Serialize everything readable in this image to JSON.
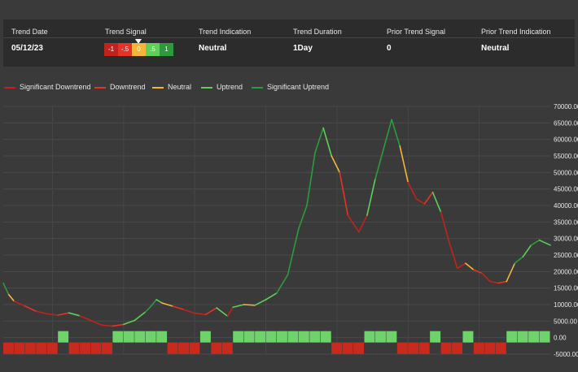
{
  "summary": {
    "headers": [
      "Trend Date",
      "Trend Signal",
      "Trend Indication",
      "Trend Duration",
      "Prior Trend Signal",
      "Prior Trend Indication"
    ],
    "trend_date": "05/12/23",
    "trend_indication": "Neutral",
    "trend_duration": "1Day",
    "prior_trend_signal": "0",
    "prior_trend_indication": "Neutral",
    "signal_scale": [
      {
        "label": "-1",
        "color": "#c0231b"
      },
      {
        "label": "-.5",
        "color": "#e53327"
      },
      {
        "label": "0",
        "color": "#f3b53b"
      },
      {
        "label": ".5",
        "color": "#5fcf5a"
      },
      {
        "label": "1",
        "color": "#2e9a3e"
      }
    ],
    "current_signal": "0"
  },
  "chart_data": {
    "type": "line",
    "legend_placement": "top-left",
    "series": [
      {
        "name": "Significant Downtrend",
        "color": "#c0231b"
      },
      {
        "name": "Downtrend",
        "color": "#e53327"
      },
      {
        "name": "Neutral",
        "color": "#f3b53b"
      },
      {
        "name": "Uptrend",
        "color": "#5fcf5a"
      },
      {
        "name": "Significant Uptrend",
        "color": "#2e9a3e"
      }
    ],
    "ylim": [
      -5000,
      70000
    ],
    "yticks": [
      "70000.00",
      "65000.00",
      "60000.00",
      "55000.00",
      "50000.00",
      "45000.00",
      "40000.00",
      "35000.00",
      "30000.00",
      "25000.00",
      "20000.00",
      "15000.00",
      "10000.00",
      "5000.00",
      "0.00",
      "-5000.00"
    ],
    "grid": true,
    "price": [
      {
        "x": 0,
        "y": 16500,
        "s": 1
      },
      {
        "x": 0.01,
        "y": 13000,
        "s": 0
      },
      {
        "x": 0.02,
        "y": 11000,
        "s": -1
      },
      {
        "x": 0.04,
        "y": 9500,
        "s": -0.5
      },
      {
        "x": 0.06,
        "y": 8000,
        "s": -1
      },
      {
        "x": 0.08,
        "y": 7200,
        "s": -1
      },
      {
        "x": 0.1,
        "y": 6800,
        "s": -0.5
      },
      {
        "x": 0.12,
        "y": 7500,
        "s": 0.5
      },
      {
        "x": 0.14,
        "y": 6600,
        "s": -1
      },
      {
        "x": 0.16,
        "y": 5200,
        "s": -1
      },
      {
        "x": 0.18,
        "y": 3800,
        "s": -1
      },
      {
        "x": 0.2,
        "y": 3500,
        "s": -0.5
      },
      {
        "x": 0.22,
        "y": 4000,
        "s": 0.5
      },
      {
        "x": 0.24,
        "y": 5200,
        "s": 0.5
      },
      {
        "x": 0.26,
        "y": 7800,
        "s": 1
      },
      {
        "x": 0.27,
        "y": 9500,
        "s": 1
      },
      {
        "x": 0.28,
        "y": 11500,
        "s": 0.5
      },
      {
        "x": 0.29,
        "y": 10500,
        "s": 0
      },
      {
        "x": 0.31,
        "y": 9500,
        "s": -0.5
      },
      {
        "x": 0.33,
        "y": 8500,
        "s": -1
      },
      {
        "x": 0.35,
        "y": 7400,
        "s": -1
      },
      {
        "x": 0.37,
        "y": 7000,
        "s": -0.5
      },
      {
        "x": 0.39,
        "y": 9000,
        "s": 0.5
      },
      {
        "x": 0.41,
        "y": 6500,
        "s": -1
      },
      {
        "x": 0.42,
        "y": 9200,
        "s": 0.5
      },
      {
        "x": 0.44,
        "y": 10000,
        "s": 0
      },
      {
        "x": 0.46,
        "y": 9800,
        "s": 0.5
      },
      {
        "x": 0.48,
        "y": 11500,
        "s": 0.5
      },
      {
        "x": 0.5,
        "y": 13500,
        "s": 1
      },
      {
        "x": 0.52,
        "y": 19000,
        "s": 1
      },
      {
        "x": 0.54,
        "y": 33000,
        "s": 1
      },
      {
        "x": 0.555,
        "y": 40000,
        "s": 1
      },
      {
        "x": 0.57,
        "y": 56000,
        "s": 1
      },
      {
        "x": 0.585,
        "y": 63500,
        "s": 0.5
      },
      {
        "x": 0.6,
        "y": 55000,
        "s": 0
      },
      {
        "x": 0.615,
        "y": 50000,
        "s": -0.5
      },
      {
        "x": 0.63,
        "y": 37000,
        "s": -1
      },
      {
        "x": 0.65,
        "y": 32000,
        "s": -1
      },
      {
        "x": 0.665,
        "y": 37000,
        "s": 0.5
      },
      {
        "x": 0.68,
        "y": 48000,
        "s": 1
      },
      {
        "x": 0.695,
        "y": 57000,
        "s": 1
      },
      {
        "x": 0.71,
        "y": 66000,
        "s": 1
      },
      {
        "x": 0.725,
        "y": 58000,
        "s": 0
      },
      {
        "x": 0.74,
        "y": 47000,
        "s": -1
      },
      {
        "x": 0.755,
        "y": 42000,
        "s": -1
      },
      {
        "x": 0.77,
        "y": 40500,
        "s": -0.5
      },
      {
        "x": 0.785,
        "y": 44000,
        "s": 0.5
      },
      {
        "x": 0.8,
        "y": 38000,
        "s": -1
      },
      {
        "x": 0.815,
        "y": 29000,
        "s": -1
      },
      {
        "x": 0.83,
        "y": 21000,
        "s": -1
      },
      {
        "x": 0.845,
        "y": 22500,
        "s": 0
      },
      {
        "x": 0.86,
        "y": 20500,
        "s": -0.5
      },
      {
        "x": 0.875,
        "y": 19500,
        "s": -1
      },
      {
        "x": 0.89,
        "y": 17000,
        "s": -1
      },
      {
        "x": 0.905,
        "y": 16500,
        "s": -0.5
      },
      {
        "x": 0.92,
        "y": 17000,
        "s": 0
      },
      {
        "x": 0.935,
        "y": 22500,
        "s": 1
      },
      {
        "x": 0.95,
        "y": 24500,
        "s": 0.5
      },
      {
        "x": 0.965,
        "y": 28000,
        "s": 1
      },
      {
        "x": 0.98,
        "y": 29500,
        "s": 0.5
      },
      {
        "x": 1,
        "y": 28000,
        "s": 0
      }
    ],
    "signal_bars": [
      {
        "x": 0,
        "s": -1
      },
      {
        "x": 0.02,
        "s": -1
      },
      {
        "x": 0.04,
        "s": -1
      },
      {
        "x": 0.06,
        "s": -1
      },
      {
        "x": 0.08,
        "s": -1
      },
      {
        "x": 0.1,
        "s": 1
      },
      {
        "x": 0.12,
        "s": -1
      },
      {
        "x": 0.14,
        "s": -1
      },
      {
        "x": 0.16,
        "s": -1
      },
      {
        "x": 0.18,
        "s": -1
      },
      {
        "x": 0.2,
        "s": 1
      },
      {
        "x": 0.22,
        "s": 1
      },
      {
        "x": 0.24,
        "s": 1
      },
      {
        "x": 0.26,
        "s": 1
      },
      {
        "x": 0.28,
        "s": 1
      },
      {
        "x": 0.3,
        "s": -1
      },
      {
        "x": 0.32,
        "s": -1
      },
      {
        "x": 0.34,
        "s": -1
      },
      {
        "x": 0.36,
        "s": 1
      },
      {
        "x": 0.38,
        "s": -1
      },
      {
        "x": 0.4,
        "s": -1
      },
      {
        "x": 0.42,
        "s": 1
      },
      {
        "x": 0.44,
        "s": 1
      },
      {
        "x": 0.46,
        "s": 1
      },
      {
        "x": 0.48,
        "s": 1
      },
      {
        "x": 0.5,
        "s": 1
      },
      {
        "x": 0.52,
        "s": 1
      },
      {
        "x": 0.54,
        "s": 1
      },
      {
        "x": 0.56,
        "s": 1
      },
      {
        "x": 0.58,
        "s": 1
      },
      {
        "x": 0.6,
        "s": -1
      },
      {
        "x": 0.62,
        "s": -1
      },
      {
        "x": 0.64,
        "s": -1
      },
      {
        "x": 0.66,
        "s": 1
      },
      {
        "x": 0.68,
        "s": 1
      },
      {
        "x": 0.7,
        "s": 1
      },
      {
        "x": 0.72,
        "s": -1
      },
      {
        "x": 0.74,
        "s": -1
      },
      {
        "x": 0.76,
        "s": -1
      },
      {
        "x": 0.78,
        "s": 1
      },
      {
        "x": 0.8,
        "s": -1
      },
      {
        "x": 0.82,
        "s": -1
      },
      {
        "x": 0.84,
        "s": 1
      },
      {
        "x": 0.86,
        "s": -1
      },
      {
        "x": 0.88,
        "s": -1
      },
      {
        "x": 0.9,
        "s": -1
      },
      {
        "x": 0.92,
        "s": 1
      },
      {
        "x": 0.94,
        "s": 1
      },
      {
        "x": 0.96,
        "s": 1
      },
      {
        "x": 0.98,
        "s": 1
      }
    ]
  }
}
